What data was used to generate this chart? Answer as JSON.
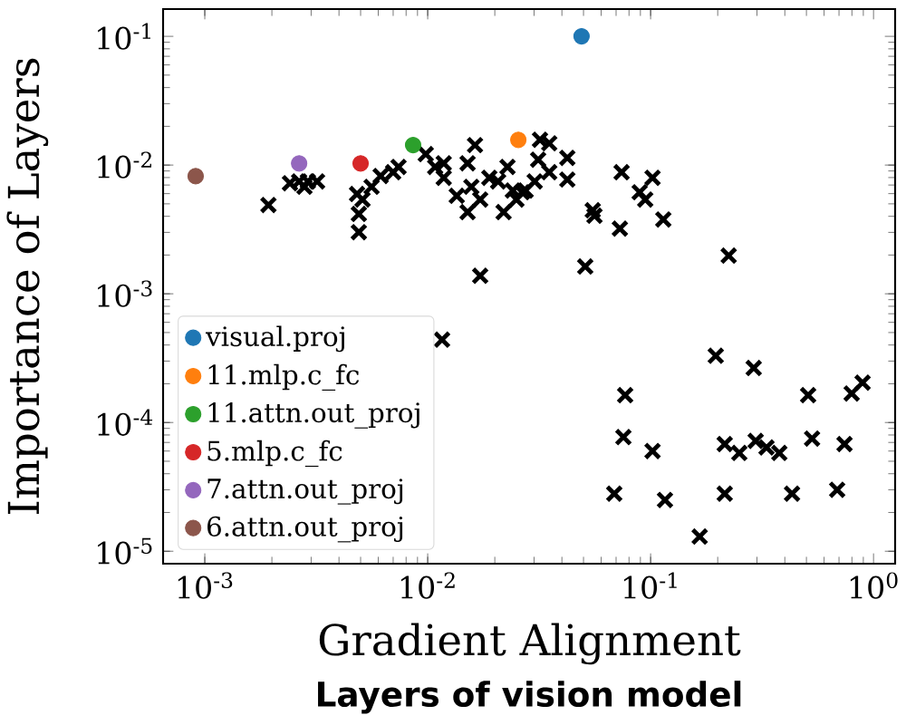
{
  "chart_data": {
    "type": "scatter",
    "xlabel": "Gradient Alignment",
    "ylabel": "Importance of Layers",
    "annotations": [
      "Layers of vision model"
    ],
    "log": "xy",
    "legend": "bottom left",
    "xlim": [
      0.00065,
      1.25
    ],
    "ylim": [
      8e-06,
      0.163
    ],
    "xticks": [
      {
        "value": 0.001,
        "label": "10$^{-3}$"
      },
      {
        "value": 0.01,
        "label": "10$^{-2}$"
      },
      {
        "value": 0.1,
        "label": "10$^{-1}$"
      },
      {
        "value": 1,
        "label": "10$^{0}$"
      }
    ],
    "yticks": [
      {
        "value": 1e-05,
        "label": "10$^{-5}$"
      },
      {
        "value": 0.0001,
        "label": "10$^{-4}$"
      },
      {
        "value": 0.001,
        "label": "10$^{-3}$"
      },
      {
        "value": 0.01,
        "label": "10$^{-2}$"
      },
      {
        "value": 0.1,
        "label": "10$^{-1}$"
      }
    ],
    "series": [
      {
        "color": "#000000",
        "marker": "cross",
        "x": [
          0.00193,
          0.00241,
          0.00265,
          0.0029,
          0.00319,
          0.0028,
          0.00482,
          0.00491,
          0.00491,
          0.0051,
          0.0056,
          0.00615,
          0.007,
          0.0074,
          0.0098,
          0.0108,
          0.0118,
          0.0118,
          0.0135,
          0.0163,
          0.0151,
          0.0157,
          0.0172,
          0.0151,
          0.0189,
          0.0207,
          0.0228,
          0.0241,
          0.0219,
          0.025,
          0.0275,
          0.0265,
          0.0319,
          0.0313,
          0.0302,
          0.0351,
          0.0423,
          0.0351,
          0.0423,
          0.0741,
          0.102,
          0.0893,
          0.0946,
          0.055,
          0.056,
          0.0728,
          0.114,
          0.0509,
          0.224,
          0.196,
          0.29,
          0.0769,
          0.0755,
          0.102,
          0.0687,
          0.116,
          0.166,
          0.215,
          0.25,
          0.296,
          0.331,
          0.378,
          0.215,
          0.431,
          0.509,
          0.53,
          0.741,
          0.687,
          0.798,
          0.893,
          0.0172,
          0.0116
        ],
        "values": [
          0.0049,
          0.00723,
          0.00747,
          0.00747,
          0.00747,
          0.00678,
          0.00596,
          0.00417,
          0.00301,
          0.0054,
          0.00678,
          0.00823,
          0.00879,
          0.00968,
          0.01216,
          0.00968,
          0.01033,
          0.00797,
          0.00577,
          0.01429,
          0.01033,
          0.00678,
          0.0054,
          0.00431,
          0.00797,
          0.00747,
          0.00968,
          0.00635,
          0.00431,
          0.0054,
          0.00635,
          0.00615,
          0.01574,
          0.01102,
          0.00747,
          0.01476,
          0.01138,
          0.00879,
          0.00772,
          0.00879,
          0.00797,
          0.00615,
          0.0054,
          0.00445,
          0.00404,
          0.00321,
          0.00378,
          0.00163,
          0.00198,
          0.00033,
          0.000265,
          0.000163,
          7.7e-05,
          6e-05,
          2.8e-05,
          2.5e-05,
          1.3e-05,
          6.8e-05,
          5.8e-05,
          7.2e-05,
          6.4e-05,
          5.8e-05,
          2.8e-05,
          2.8e-05,
          0.000163,
          7.5e-05,
          6.8e-05,
          3e-05,
          0.000168,
          0.000204,
          0.00138,
          0.00044
        ]
      },
      {
        "name": "visual.proj",
        "color": "#1f77b4",
        "marker": "circle",
        "x": [
          0.049
        ],
        "values": [
          0.1
        ]
      },
      {
        "name": "11.mlp.c_fc",
        "color": "#ff7f0e",
        "marker": "circle",
        "x": [
          0.0255
        ],
        "values": [
          0.0157
        ]
      },
      {
        "name": "11.attn.out_proj",
        "color": "#2ca02c",
        "marker": "circle",
        "x": [
          0.0086
        ],
        "values": [
          0.0143
        ]
      },
      {
        "name": "5.mlp.c_fc",
        "color": "#d62728",
        "marker": "circle",
        "x": [
          0.005
        ],
        "values": [
          0.0103
        ]
      },
      {
        "name": "7.attn.out_proj",
        "color": "#9467bd",
        "marker": "circle",
        "x": [
          0.00265
        ],
        "values": [
          0.0103
        ]
      },
      {
        "name": "6.attn.out_proj",
        "color": "#8c564b",
        "marker": "circle",
        "x": [
          0.00091
        ],
        "values": [
          0.0082
        ]
      }
    ]
  }
}
